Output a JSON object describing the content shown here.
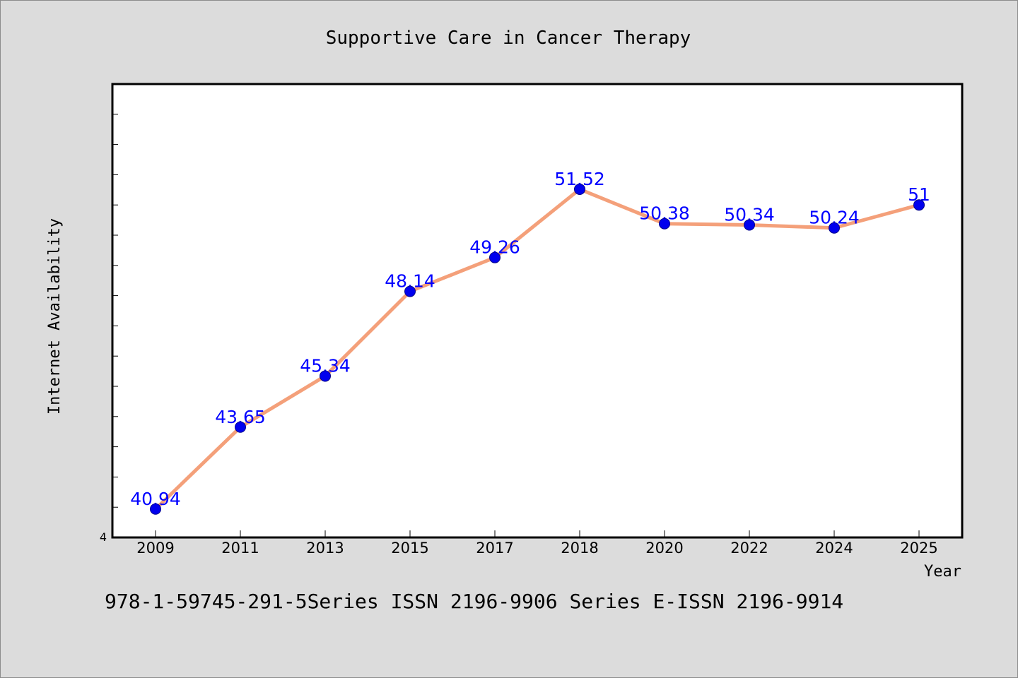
{
  "chart_data": {
    "type": "line",
    "title": "Supportive Care in Cancer Therapy",
    "xlabel": "Year",
    "ylabel": "Internet Availability",
    "categories": [
      "2009",
      "2011",
      "2013",
      "2015",
      "2017",
      "2018",
      "2020",
      "2022",
      "2024",
      "2025"
    ],
    "series": [
      {
        "values": [
          40.94,
          43.65,
          45.34,
          48.14,
          49.26,
          51.52,
          50.38,
          50.34,
          50.24,
          51
        ],
        "labels": [
          "40.94",
          "43.65",
          "45.34",
          "48.14",
          "49.26",
          "51.52",
          "50.38",
          "50.34",
          "50.24",
          "51"
        ],
        "line_color": "#f4a07a",
        "marker_color": "#0000ee",
        "label_color": "#0000ff"
      }
    ],
    "ylim": [
      40.0,
      55.0
    ],
    "y_tick_labels": [
      "4"
    ],
    "grid": false,
    "footer": "978-1-59745-291-5Series ISSN 2196-9906 Series E-ISSN 2196-9914"
  }
}
